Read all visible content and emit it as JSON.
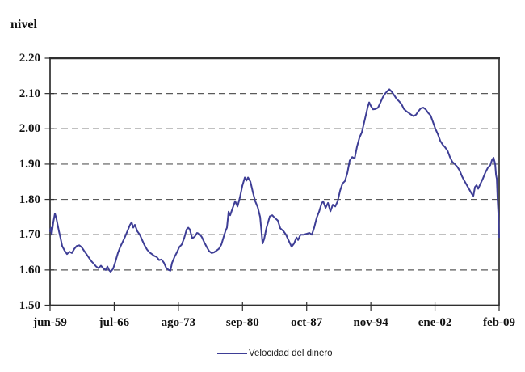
{
  "figure": {
    "background": "#ffffff"
  },
  "colors": {
    "axis": "#2f2f2f",
    "grid": "#5a5a5a",
    "line": "#3e3e96",
    "text": "#111111"
  },
  "legend": {
    "label": "Velocidad del dinero"
  },
  "chart_data": {
    "type": "line",
    "title": "",
    "y_axis_label": "nivel",
    "xlabel": "",
    "ylabel": "nivel",
    "ylim": [
      1.5,
      2.2
    ],
    "y_tick_step": 0.1,
    "y_tick_labels": [
      "2.20",
      "2.10",
      "2.00",
      "1.90",
      "1.80",
      "1.70",
      "1.60",
      "1.50"
    ],
    "x_tick_labels": [
      "jun-59",
      "jul-66",
      "ago-73",
      "sep-80",
      "oct-87",
      "nov-94",
      "ene-02",
      "feb-09"
    ],
    "x_domain_years": [
      1959.42,
      2009.08
    ],
    "grid": "horizontal-dashed",
    "legend_position": "bottom-center",
    "series": [
      {
        "name": "Velocidad del dinero",
        "color": "#3e3e96",
        "points": [
          [
            1959.42,
            1.71
          ],
          [
            1959.51,
            1.72
          ],
          [
            1959.6,
            1.7
          ],
          [
            1959.78,
            1.735
          ],
          [
            1959.96,
            1.76
          ],
          [
            1960.13,
            1.745
          ],
          [
            1960.4,
            1.71
          ],
          [
            1960.58,
            1.69
          ],
          [
            1960.76,
            1.668
          ],
          [
            1961.03,
            1.655
          ],
          [
            1961.3,
            1.645
          ],
          [
            1961.56,
            1.652
          ],
          [
            1961.83,
            1.648
          ],
          [
            1962.1,
            1.66
          ],
          [
            1962.37,
            1.668
          ],
          [
            1962.64,
            1.67
          ],
          [
            1962.9,
            1.665
          ],
          [
            1963.17,
            1.655
          ],
          [
            1963.44,
            1.645
          ],
          [
            1963.71,
            1.635
          ],
          [
            1963.98,
            1.625
          ],
          [
            1964.24,
            1.618
          ],
          [
            1964.51,
            1.61
          ],
          [
            1964.78,
            1.605
          ],
          [
            1965.05,
            1.612
          ],
          [
            1965.32,
            1.604
          ],
          [
            1965.58,
            1.6
          ],
          [
            1965.76,
            1.61
          ],
          [
            1965.94,
            1.6
          ],
          [
            1966.12,
            1.595
          ],
          [
            1966.39,
            1.603
          ],
          [
            1966.66,
            1.625
          ],
          [
            1966.92,
            1.648
          ],
          [
            1967.19,
            1.666
          ],
          [
            1967.46,
            1.68
          ],
          [
            1967.73,
            1.695
          ],
          [
            1968.0,
            1.712
          ],
          [
            1968.26,
            1.728
          ],
          [
            1968.44,
            1.735
          ],
          [
            1968.62,
            1.72
          ],
          [
            1968.8,
            1.728
          ],
          [
            1969.07,
            1.71
          ],
          [
            1969.34,
            1.7
          ],
          [
            1969.6,
            1.685
          ],
          [
            1969.87,
            1.67
          ],
          [
            1970.14,
            1.658
          ],
          [
            1970.41,
            1.65
          ],
          [
            1970.68,
            1.645
          ],
          [
            1970.94,
            1.64
          ],
          [
            1971.21,
            1.637
          ],
          [
            1971.48,
            1.628
          ],
          [
            1971.75,
            1.63
          ],
          [
            1972.02,
            1.62
          ],
          [
            1972.28,
            1.605
          ],
          [
            1972.55,
            1.6
          ],
          [
            1972.73,
            1.598
          ],
          [
            1972.91,
            1.62
          ],
          [
            1973.18,
            1.637
          ],
          [
            1973.45,
            1.65
          ],
          [
            1973.71,
            1.665
          ],
          [
            1973.98,
            1.672
          ],
          [
            1974.25,
            1.69
          ],
          [
            1974.52,
            1.715
          ],
          [
            1974.7,
            1.72
          ],
          [
            1974.87,
            1.715
          ],
          [
            1975.14,
            1.69
          ],
          [
            1975.41,
            1.694
          ],
          [
            1975.68,
            1.705
          ],
          [
            1975.95,
            1.702
          ],
          [
            1976.21,
            1.693
          ],
          [
            1976.48,
            1.678
          ],
          [
            1976.75,
            1.665
          ],
          [
            1977.02,
            1.653
          ],
          [
            1977.29,
            1.648
          ],
          [
            1977.55,
            1.65
          ],
          [
            1977.82,
            1.655
          ],
          [
            1978.09,
            1.66
          ],
          [
            1978.36,
            1.672
          ],
          [
            1978.63,
            1.695
          ],
          [
            1978.81,
            1.71
          ],
          [
            1978.98,
            1.72
          ],
          [
            1979.16,
            1.765
          ],
          [
            1979.34,
            1.755
          ],
          [
            1979.61,
            1.775
          ],
          [
            1979.88,
            1.795
          ],
          [
            1980.15,
            1.78
          ],
          [
            1980.41,
            1.805
          ],
          [
            1980.68,
            1.838
          ],
          [
            1980.95,
            1.862
          ],
          [
            1981.13,
            1.853
          ],
          [
            1981.31,
            1.862
          ],
          [
            1981.58,
            1.85
          ],
          [
            1981.85,
            1.82
          ],
          [
            1982.11,
            1.795
          ],
          [
            1982.38,
            1.778
          ],
          [
            1982.65,
            1.75
          ],
          [
            1982.92,
            1.675
          ],
          [
            1983.1,
            1.688
          ],
          [
            1983.36,
            1.72
          ],
          [
            1983.72,
            1.752
          ],
          [
            1983.99,
            1.755
          ],
          [
            1984.26,
            1.748
          ],
          [
            1984.61,
            1.74
          ],
          [
            1984.88,
            1.718
          ],
          [
            1985.24,
            1.71
          ],
          [
            1985.51,
            1.7
          ],
          [
            1985.78,
            1.685
          ],
          [
            1986.13,
            1.666
          ],
          [
            1986.4,
            1.675
          ],
          [
            1986.67,
            1.692
          ],
          [
            1986.85,
            1.685
          ],
          [
            1987.12,
            1.7
          ],
          [
            1987.47,
            1.7
          ],
          [
            1987.83,
            1.703
          ],
          [
            1988.1,
            1.705
          ],
          [
            1988.37,
            1.7
          ],
          [
            1988.63,
            1.72
          ],
          [
            1988.9,
            1.748
          ],
          [
            1989.17,
            1.765
          ],
          [
            1989.44,
            1.788
          ],
          [
            1989.62,
            1.795
          ],
          [
            1989.89,
            1.776
          ],
          [
            1990.15,
            1.79
          ],
          [
            1990.42,
            1.766
          ],
          [
            1990.69,
            1.785
          ],
          [
            1990.96,
            1.78
          ],
          [
            1991.23,
            1.795
          ],
          [
            1991.49,
            1.825
          ],
          [
            1991.76,
            1.845
          ],
          [
            1992.03,
            1.852
          ],
          [
            1992.3,
            1.875
          ],
          [
            1992.56,
            1.91
          ],
          [
            1992.83,
            1.92
          ],
          [
            1993.1,
            1.916
          ],
          [
            1993.37,
            1.95
          ],
          [
            1993.64,
            1.975
          ],
          [
            1993.9,
            1.99
          ],
          [
            1994.26,
            2.03
          ],
          [
            1994.53,
            2.06
          ],
          [
            1994.71,
            2.075
          ],
          [
            1994.89,
            2.065
          ],
          [
            1995.15,
            2.055
          ],
          [
            1995.42,
            2.056
          ],
          [
            1995.69,
            2.06
          ],
          [
            1995.96,
            2.075
          ],
          [
            1996.23,
            2.09
          ],
          [
            1996.49,
            2.1
          ],
          [
            1996.76,
            2.108
          ],
          [
            1996.94,
            2.112
          ],
          [
            1997.21,
            2.105
          ],
          [
            1997.48,
            2.095
          ],
          [
            1997.74,
            2.085
          ],
          [
            1998.01,
            2.078
          ],
          [
            1998.28,
            2.07
          ],
          [
            1998.55,
            2.056
          ],
          [
            1998.82,
            2.05
          ],
          [
            1999.08,
            2.045
          ],
          [
            1999.35,
            2.04
          ],
          [
            1999.62,
            2.036
          ],
          [
            1999.89,
            2.04
          ],
          [
            2000.16,
            2.05
          ],
          [
            2000.42,
            2.058
          ],
          [
            2000.69,
            2.06
          ],
          [
            2000.96,
            2.055
          ],
          [
            2001.23,
            2.045
          ],
          [
            2001.5,
            2.038
          ],
          [
            2001.76,
            2.02
          ],
          [
            2002.03,
            2.0
          ],
          [
            2002.3,
            1.985
          ],
          [
            2002.57,
            1.966
          ],
          [
            2002.84,
            1.955
          ],
          [
            2003.1,
            1.948
          ],
          [
            2003.37,
            1.938
          ],
          [
            2003.64,
            1.92
          ],
          [
            2003.91,
            1.906
          ],
          [
            2004.18,
            1.9
          ],
          [
            2004.44,
            1.893
          ],
          [
            2004.71,
            1.882
          ],
          [
            2004.98,
            1.865
          ],
          [
            2005.25,
            1.852
          ],
          [
            2005.52,
            1.84
          ],
          [
            2005.78,
            1.828
          ],
          [
            2006.05,
            1.816
          ],
          [
            2006.23,
            1.81
          ],
          [
            2006.41,
            1.835
          ],
          [
            2006.59,
            1.84
          ],
          [
            2006.77,
            1.83
          ],
          [
            2007.03,
            1.845
          ],
          [
            2007.3,
            1.86
          ],
          [
            2007.57,
            1.877
          ],
          [
            2007.84,
            1.89
          ],
          [
            2008.11,
            1.897
          ],
          [
            2008.29,
            1.912
          ],
          [
            2008.46,
            1.918
          ],
          [
            2008.64,
            1.9
          ],
          [
            2008.73,
            1.87
          ],
          [
            2008.82,
            1.858
          ],
          [
            2008.91,
            1.8
          ],
          [
            2009.0,
            1.757
          ],
          [
            2009.08,
            1.693
          ]
        ]
      }
    ]
  }
}
